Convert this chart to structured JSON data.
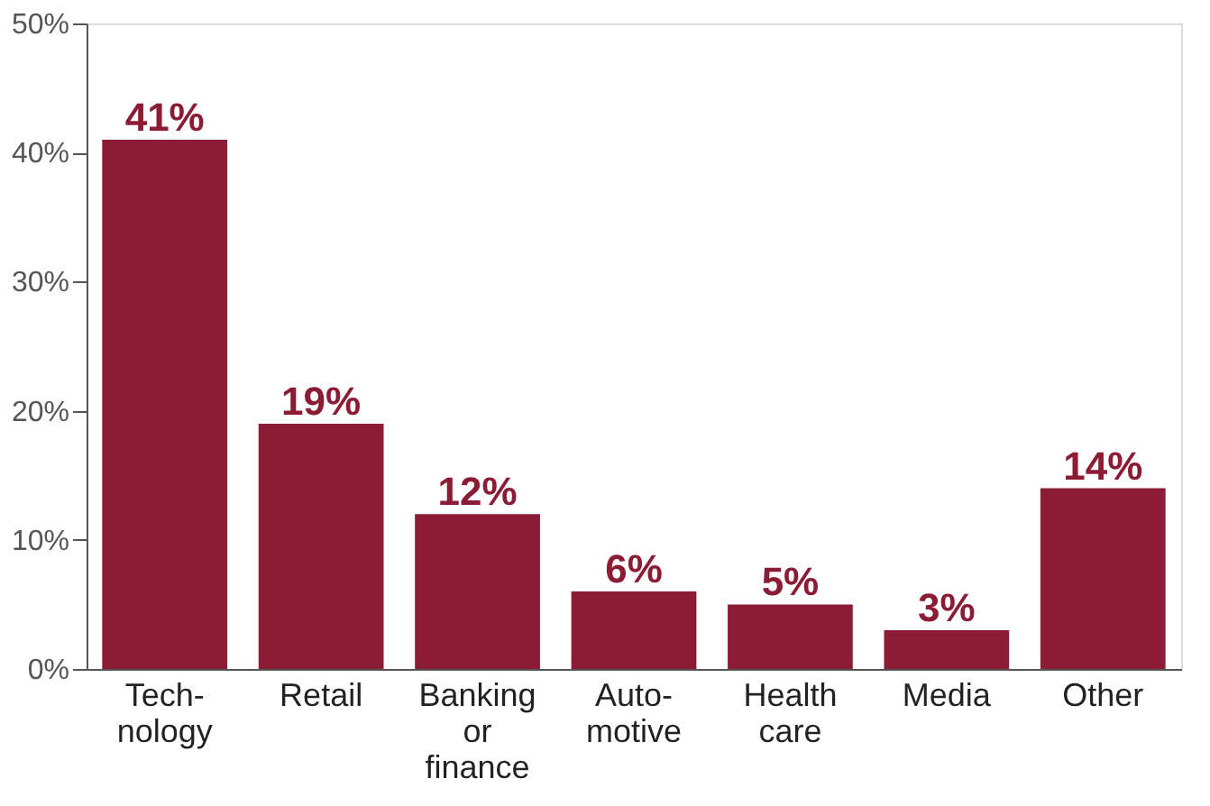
{
  "chart_data": {
    "type": "bar",
    "categories": [
      "Tech-\nnology",
      "Retail",
      "Banking\nor\nfinance",
      "Auto-\nmotive",
      "Health\ncare",
      "Media",
      "Other"
    ],
    "values": [
      41,
      19,
      12,
      6,
      5,
      3,
      14
    ],
    "value_labels": [
      "41%",
      "19%",
      "12%",
      "6%",
      "5%",
      "3%",
      "14%"
    ],
    "color": "#8c1c36",
    "ylim": [
      0,
      50
    ],
    "yticks": [
      {
        "value": 0,
        "label": "0%"
      },
      {
        "value": 10,
        "label": "10%"
      },
      {
        "value": 20,
        "label": "20%"
      },
      {
        "value": 30,
        "label": "30%"
      },
      {
        "value": 40,
        "label": "40%"
      },
      {
        "value": 50,
        "label": "50%"
      }
    ],
    "grid": false
  }
}
